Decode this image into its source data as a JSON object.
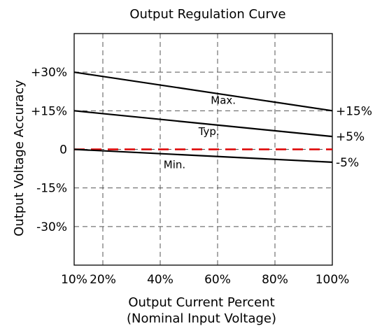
{
  "chart_data": {
    "type": "line",
    "title": "Output Regulation Curve",
    "xlabel": "Output Current Percent",
    "xlabel2": "(Nominal Input Voltage)",
    "ylabel": "Output Voltage Accuracy",
    "x_ticks": [
      {
        "value": 10,
        "label": "10%"
      },
      {
        "value": 20,
        "label": "20%"
      },
      {
        "value": 40,
        "label": "40%"
      },
      {
        "value": 60,
        "label": "60%"
      },
      {
        "value": 80,
        "label": "80%"
      },
      {
        "value": 100,
        "label": "100%"
      }
    ],
    "y_ticks": [
      {
        "value": 30,
        "label": "+30%"
      },
      {
        "value": 15,
        "label": "+15%"
      },
      {
        "value": 0,
        "label": "0"
      },
      {
        "value": -15,
        "label": "-15%"
      },
      {
        "value": -30,
        "label": "-30%"
      }
    ],
    "xlim": [
      10,
      100
    ],
    "ylim": [
      -45,
      45
    ],
    "grid": true,
    "series": [
      {
        "name": "Max.",
        "x": [
          10,
          100
        ],
        "y": [
          30,
          15
        ],
        "color": "#000000",
        "dash": false,
        "label_at": [
          62,
          19
        ],
        "end_label": "+15%",
        "end_value": 15
      },
      {
        "name": "Typ.",
        "x": [
          10,
          100
        ],
        "y": [
          15,
          5
        ],
        "color": "#000000",
        "dash": false,
        "label_at": [
          57,
          7
        ],
        "end_label": "+5%",
        "end_value": 5
      },
      {
        "name": "",
        "x": [
          10,
          100
        ],
        "y": [
          0,
          0
        ],
        "color": "#dd0000",
        "dash": true
      },
      {
        "name": "Min.",
        "x": [
          10,
          100
        ],
        "y": [
          0,
          -5
        ],
        "color": "#000000",
        "dash": false,
        "label_at": [
          45,
          -6
        ],
        "end_label": "-5%",
        "end_value": -5
      }
    ]
  }
}
